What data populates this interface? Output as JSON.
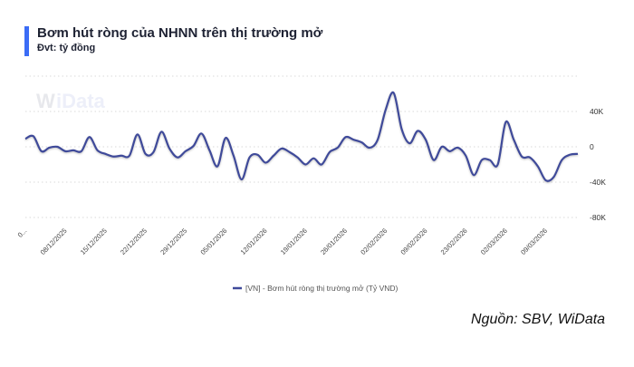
{
  "header": {
    "title": "Bơm hút ròng của NHNN trên thị trường mở",
    "subtitle": "Đvt: tỷ đồng"
  },
  "watermark": "WiData",
  "source": "Nguồn: SBV, WiData",
  "colors": {
    "line": "#3f4a9a",
    "accent": "#3b6cf6",
    "grid": "#d9d9d9"
  },
  "chart_data": {
    "type": "line",
    "title": "Bơm hút ròng của NHNN trên thị trường mở",
    "ylabel": "",
    "xlabel": "",
    "ylim": [
      -80,
      80
    ],
    "y_axis_position": "right",
    "y_ticks": [
      {
        "value": 40,
        "label": "40K"
      },
      {
        "value": 0,
        "label": "0"
      },
      {
        "value": -40,
        "label": "-40K"
      },
      {
        "value": -80,
        "label": "-80K"
      }
    ],
    "grid": true,
    "legend_position": "bottom",
    "x_tick_labels": [
      {
        "index": 0,
        "label": "0..."
      },
      {
        "index": 5,
        "label": "08/12/2025"
      },
      {
        "index": 10,
        "label": "15/12/2025"
      },
      {
        "index": 15,
        "label": "22/12/2025"
      },
      {
        "index": 20,
        "label": "29/12/2025"
      },
      {
        "index": 25,
        "label": "05/01/2026"
      },
      {
        "index": 30,
        "label": "12/01/2026"
      },
      {
        "index": 35,
        "label": "19/01/2026"
      },
      {
        "index": 40,
        "label": "26/01/2026"
      },
      {
        "index": 45,
        "label": "02/02/2026"
      },
      {
        "index": 50,
        "label": "09/02/2026"
      },
      {
        "index": 55,
        "label": "23/02/2026"
      },
      {
        "index": 60,
        "label": "02/03/2026"
      },
      {
        "index": 65,
        "label": "09/03/2026"
      }
    ],
    "series": [
      {
        "name": "[VN] - Bơm hút ròng thị trường mở (Tỷ VND)",
        "unit": "thousand tỷ đồng",
        "values": [
          9,
          12,
          -5,
          -1,
          0,
          -5,
          -4,
          -5,
          11,
          -4,
          -8,
          -11,
          -10,
          -10,
          14,
          -8,
          -6,
          17,
          -2,
          -12,
          -5,
          1,
          15,
          -4,
          -22,
          10,
          -10,
          -37,
          -12,
          -9,
          -18,
          -10,
          -2,
          -6,
          -12,
          -20,
          -13,
          -20,
          -6,
          -1,
          11,
          8,
          5,
          -1,
          8,
          42,
          61,
          20,
          4,
          18,
          8,
          -15,
          0,
          -5,
          -1,
          -10,
          -32,
          -15,
          -15,
          -20,
          28,
          8,
          -11,
          -12,
          -22,
          -38,
          -34,
          -15,
          -9,
          -8
        ]
      }
    ]
  }
}
